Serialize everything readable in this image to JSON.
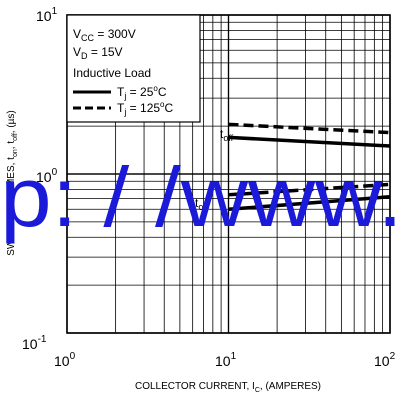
{
  "chart_data": {
    "type": "line",
    "title": "",
    "xlabel": "COLLECTOR CURRENT, I",
    "xlabel_sub": "C",
    "xlabel_suffix": ", (AMPERES)",
    "ylabel": "SWITCHING TIMES, t",
    "ylabel_sub1": "on",
    "ylabel_mid": ", t",
    "ylabel_sub2": "off",
    "ylabel_suffix": ", (µs)",
    "x_scale": "log",
    "y_scale": "log",
    "xlim": [
      1,
      100
    ],
    "ylim": [
      0.1,
      10
    ],
    "x_ticks": [
      {
        "base": "10",
        "exp": "0"
      },
      {
        "base": "10",
        "exp": "1"
      },
      {
        "base": "10",
        "exp": "2"
      }
    ],
    "y_ticks": [
      {
        "base": "10",
        "exp": "-1"
      },
      {
        "base": "10",
        "exp": "0"
      },
      {
        "base": "10",
        "exp": "1"
      }
    ],
    "grid": true,
    "legend_placement": "top-left",
    "conditions": [
      {
        "name": "V",
        "sub": "CC",
        "value": " = 300V"
      },
      {
        "name": "V",
        "sub": "D",
        "value": " = 15V"
      },
      {
        "name": "Inductive Load",
        "sub": "",
        "value": ""
      }
    ],
    "series": [
      {
        "name": "T_j = 25°C",
        "label_main": "T",
        "label_sub": "j",
        "label_rest": " = 25",
        "label_sup": "o",
        "label_end": "C",
        "style": "solid",
        "group": "t_off",
        "x": [
          10,
          100
        ],
        "values": [
          1.7,
          1.5
        ]
      },
      {
        "name": "T_j = 125°C",
        "label_main": "T",
        "label_sub": "j",
        "label_rest": " = 125",
        "label_sup": "o",
        "label_end": "C",
        "style": "dashed",
        "group": "t_off",
        "x": [
          10,
          100
        ],
        "values": [
          2.05,
          1.82
        ]
      },
      {
        "name": "T_j = 25°C",
        "style": "solid",
        "group": "t_on",
        "x": [
          10,
          100
        ],
        "values": [
          0.6,
          0.72
        ]
      },
      {
        "name": "T_j = 125°C",
        "style": "dashed",
        "group": "t_on",
        "x": [
          10,
          100
        ],
        "values": [
          0.74,
          0.86
        ]
      }
    ],
    "annotations": [
      {
        "text": "t",
        "sub": "off",
        "x": 10,
        "y": 1.3
      },
      {
        "text": "t",
        "sub": "on",
        "x": 10,
        "y": 0.6
      }
    ]
  },
  "watermark": "p: / /www."
}
